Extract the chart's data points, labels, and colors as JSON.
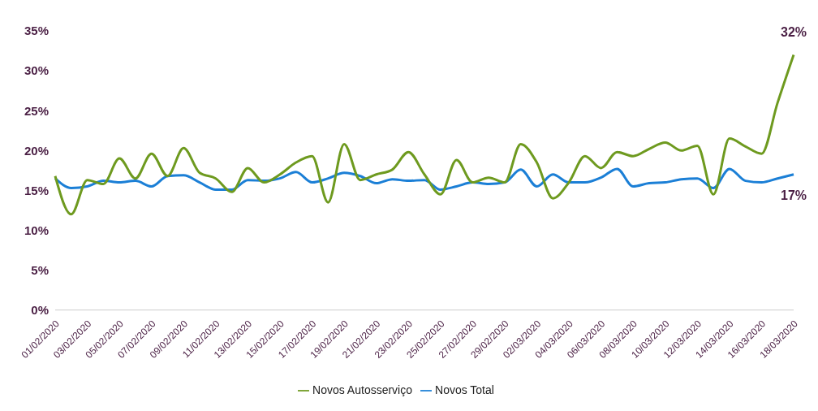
{
  "chart_data": {
    "type": "line",
    "categories": [
      "01/02/2020",
      null,
      "03/02/2020",
      null,
      "05/02/2020",
      null,
      "07/02/2020",
      null,
      "09/02/2020",
      null,
      "11/02/2020",
      null,
      "13/02/2020",
      null,
      "15/02/2020",
      null,
      "17/02/2020",
      null,
      "19/02/2020",
      null,
      "21/02/2020",
      null,
      "23/02/2020",
      null,
      "25/02/2020",
      null,
      "27/02/2020",
      null,
      "29/02/2020",
      null,
      "02/03/2020",
      null,
      "04/03/2020",
      null,
      "06/03/2020",
      null,
      "08/03/2020",
      null,
      "10/03/2020",
      null,
      "12/03/2020",
      null,
      "14/03/2020",
      null,
      "16/03/2020",
      null,
      "18/03/2020"
    ],
    "series": [
      {
        "name": "Novos Total",
        "color": "#1b7fd6",
        "values": [
          16.5,
          15.3,
          15.5,
          16.2,
          16,
          16.2,
          15.5,
          16.8,
          16.9,
          16,
          15.1,
          15.1,
          16.3,
          16.2,
          16.5,
          17.3,
          16,
          16.5,
          17.2,
          16.8,
          15.9,
          16.4,
          16.2,
          16.3,
          15.1,
          15.5,
          16,
          15.8,
          16,
          17.6,
          15.5,
          17,
          16,
          16,
          16.6,
          17.7,
          15.5,
          15.9,
          16,
          16.4,
          16.5,
          15.3,
          17.7,
          16.2,
          16,
          16.5,
          17
        ]
      },
      {
        "name": "Novos Autosserviço",
        "color": "#6e9a1f",
        "values": [
          16.8,
          12,
          16.3,
          15.8,
          19,
          16.5,
          19.6,
          16.8,
          20.3,
          17.2,
          16.5,
          14.8,
          17.8,
          16,
          17,
          18.5,
          19.3,
          13.5,
          20.8,
          16.3,
          17,
          17.6,
          19.8,
          17,
          14.5,
          18.8,
          16,
          16.6,
          16,
          20.8,
          18.5,
          14,
          16,
          19.3,
          17.8,
          19.8,
          19.3,
          20.2,
          21,
          20,
          20.6,
          14.5,
          21.5,
          20.5,
          19.6,
          26,
          32
        ]
      }
    ],
    "ylim": [
      0,
      35
    ],
    "yticks": [
      {
        "value": 0,
        "label": "0%"
      },
      {
        "value": 5,
        "label": "5%"
      },
      {
        "value": 10,
        "label": "10%"
      },
      {
        "value": 15,
        "label": "15%"
      },
      {
        "value": 20,
        "label": "20%"
      },
      {
        "value": 25,
        "label": "25%"
      },
      {
        "value": 30,
        "label": "30%"
      },
      {
        "value": 35,
        "label": "35%"
      }
    ],
    "annotations": [
      {
        "text": "32%",
        "x": "18/03/2020",
        "y": 32
      },
      {
        "text": "17%",
        "x": "18/03/2020",
        "y": 17
      }
    ],
    "legend": "bottom",
    "grid": false,
    "marker": "none",
    "line_style": "solid"
  }
}
